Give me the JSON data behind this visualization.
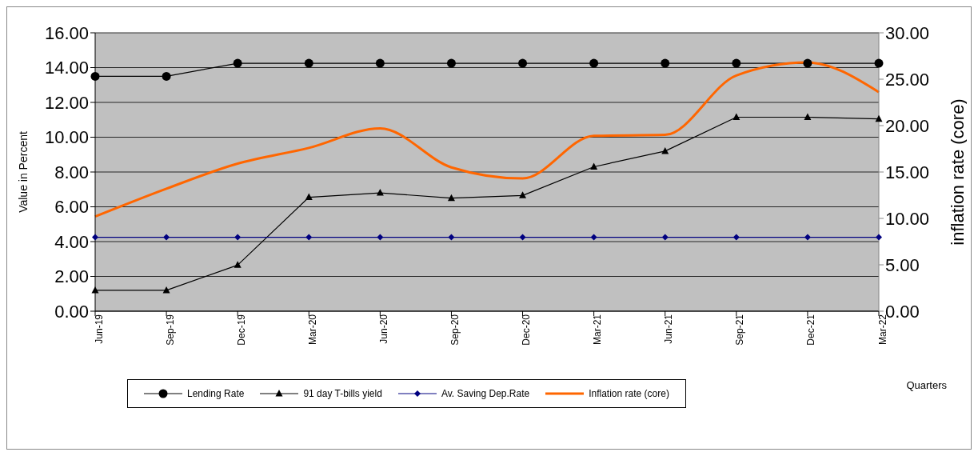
{
  "chart_data": {
    "type": "line",
    "ylabel": "Value in Percent",
    "y2label": "inflation rate (core)",
    "xlabel": "Quarters",
    "categories": [
      "Jun-19",
      "Sep-19",
      "Dec-19",
      "Mar-20",
      "Jun-20",
      "Sep-20",
      "Dec-20",
      "Mar-21",
      "Jun-21",
      "Sep-21",
      "Dec-21",
      "Mar-22"
    ],
    "series": [
      {
        "name": "Lending Rate",
        "color": "#000000",
        "marker": "circle",
        "values": [
          13.5,
          13.5,
          14.25,
          14.25,
          14.25,
          14.25,
          14.25,
          14.25,
          14.25,
          14.25,
          14.25,
          14.25
        ]
      },
      {
        "name": "91 day T-bills yield",
        "color": "#000000",
        "marker": "triangle",
        "values": [
          1.2,
          1.2,
          2.65,
          6.55,
          6.8,
          6.5,
          6.65,
          8.3,
          9.2,
          11.15,
          11.15,
          11.05
        ]
      },
      {
        "name": "Av. Saving Dep.Rate",
        "color": "#000080",
        "marker": "diamond",
        "values": [
          4.25,
          4.25,
          4.25,
          4.25,
          4.25,
          4.25,
          4.25,
          4.25,
          4.25,
          4.25,
          4.25,
          4.25
        ]
      },
      {
        "name": "Inflation rate (core)",
        "color": "#ff6600",
        "marker": "none",
        "axis": "y2",
        "values": [
          10.2,
          13.2,
          15.9,
          17.6,
          19.7,
          15.5,
          14.3,
          18.9,
          19.0,
          25.4,
          26.8,
          23.6
        ]
      }
    ],
    "ylim": [
      0,
      16
    ],
    "yticks": [
      {
        "value": 0,
        "label": "0.00"
      },
      {
        "value": 2,
        "label": "2.00"
      },
      {
        "value": 4,
        "label": "4.00"
      },
      {
        "value": 6,
        "label": "6.00"
      },
      {
        "value": 8,
        "label": "8.00"
      },
      {
        "value": 10,
        "label": "10.00"
      },
      {
        "value": 12,
        "label": "12.00"
      },
      {
        "value": 14,
        "label": "14.00"
      },
      {
        "value": 16,
        "label": "16.00"
      }
    ],
    "y2lim": [
      0,
      30
    ],
    "y2ticks": [
      {
        "value": 0,
        "label": "0.00"
      },
      {
        "value": 5,
        "label": "5.00"
      },
      {
        "value": 10,
        "label": "10.00"
      },
      {
        "value": 15,
        "label": "15.00"
      },
      {
        "value": 20,
        "label": "20.00"
      },
      {
        "value": 25,
        "label": "25.00"
      },
      {
        "value": 30,
        "label": "30.00"
      }
    ],
    "grid": "y",
    "legend": "bottom"
  }
}
